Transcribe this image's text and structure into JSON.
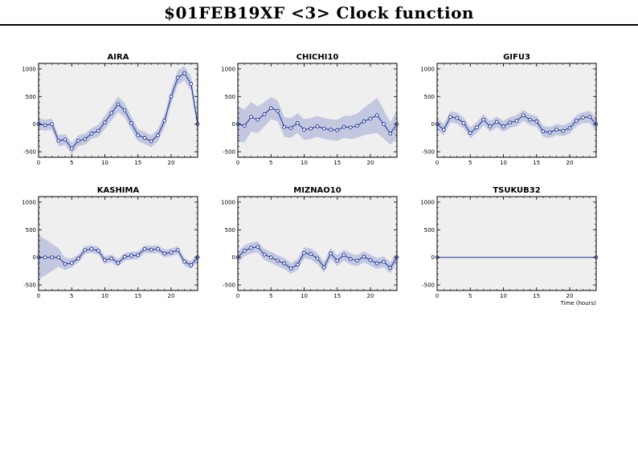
{
  "title": "$01FEB19XF <3>  Clock function",
  "chart_data": [
    {
      "type": "line",
      "title": "AIRA",
      "xlim": [
        0,
        24
      ],
      "ylim": [
        -600,
        1100
      ],
      "xticks": [
        "0",
        "5",
        "10",
        "15",
        "20"
      ],
      "yticks": [
        "-500",
        "0",
        "500",
        "1000"
      ],
      "xlabel": "",
      "x": [
        0,
        1,
        2,
        3,
        4,
        5,
        6,
        7,
        8,
        9,
        10,
        11,
        12,
        13,
        14,
        15,
        16,
        17,
        18,
        19,
        20,
        21,
        22,
        23,
        24
      ],
      "y": [
        0,
        -20,
        0,
        -300,
        -280,
        -440,
        -300,
        -270,
        -170,
        -120,
        30,
        200,
        360,
        250,
        20,
        -200,
        -250,
        -310,
        -200,
        60,
        500,
        840,
        920,
        730,
        0
      ],
      "band": [
        100,
        100,
        100,
        100,
        100,
        100,
        100,
        100,
        100,
        110,
        120,
        130,
        140,
        130,
        120,
        110,
        110,
        110,
        110,
        120,
        130,
        130,
        130,
        130,
        110
      ],
      "grid": false
    },
    {
      "type": "line",
      "title": "CHICHI10",
      "xlim": [
        0,
        24
      ],
      "ylim": [
        -600,
        1100
      ],
      "xticks": [
        "0",
        "5",
        "10",
        "15",
        "20"
      ],
      "yticks": [
        "-500",
        "0",
        "500",
        "1000"
      ],
      "xlabel": "",
      "x": [
        0,
        1,
        2,
        3,
        4,
        5,
        6,
        7,
        8,
        9,
        10,
        11,
        12,
        13,
        14,
        15,
        16,
        17,
        18,
        19,
        20,
        21,
        22,
        23,
        24
      ],
      "y": [
        0,
        -30,
        130,
        80,
        180,
        290,
        240,
        -50,
        -70,
        20,
        -100,
        -80,
        -40,
        -80,
        -100,
        -110,
        -50,
        -60,
        -30,
        50,
        100,
        160,
        0,
        -170,
        0
      ],
      "band": [
        320,
        300,
        270,
        240,
        220,
        200,
        190,
        180,
        180,
        180,
        190,
        190,
        190,
        190,
        190,
        190,
        200,
        210,
        220,
        250,
        280,
        320,
        260,
        200,
        250
      ],
      "grid": false
    },
    {
      "type": "line",
      "title": "GIFU3",
      "xlim": [
        0,
        24
      ],
      "ylim": [
        -600,
        1100
      ],
      "xticks": [
        "0",
        "5",
        "10",
        "15",
        "20"
      ],
      "yticks": [
        "-500",
        "0",
        "500",
        "1000"
      ],
      "xlabel": "",
      "x": [
        0,
        1,
        2,
        3,
        4,
        5,
        6,
        7,
        8,
        9,
        10,
        11,
        12,
        13,
        14,
        15,
        16,
        17,
        18,
        19,
        20,
        21,
        22,
        23,
        24
      ],
      "y": [
        0,
        -100,
        130,
        110,
        20,
        -160,
        -60,
        80,
        -40,
        40,
        -40,
        30,
        60,
        160,
        80,
        50,
        -130,
        -150,
        -100,
        -120,
        -70,
        60,
        120,
        130,
        0
      ],
      "band": [
        110,
        100,
        100,
        100,
        100,
        100,
        100,
        100,
        100,
        100,
        100,
        100,
        100,
        100,
        100,
        100,
        100,
        100,
        100,
        100,
        100,
        100,
        100,
        110,
        120
      ],
      "grid": false
    },
    {
      "type": "line",
      "title": "KASHIMA",
      "xlim": [
        0,
        24
      ],
      "ylim": [
        -600,
        1100
      ],
      "xticks": [
        "0",
        "5",
        "10",
        "15",
        "20"
      ],
      "yticks": [
        "-500",
        "0",
        "500",
        "1000"
      ],
      "xlabel": "",
      "x": [
        0,
        1,
        2,
        3,
        4,
        5,
        6,
        7,
        8,
        9,
        10,
        11,
        12,
        13,
        14,
        15,
        16,
        17,
        18,
        19,
        20,
        21,
        22,
        23,
        24
      ],
      "y": [
        0,
        0,
        0,
        0,
        -120,
        -100,
        -20,
        130,
        150,
        120,
        -50,
        -20,
        -100,
        10,
        30,
        40,
        150,
        140,
        150,
        70,
        90,
        130,
        -80,
        -140,
        0
      ],
      "band": [
        400,
        330,
        250,
        170,
        110,
        80,
        70,
        70,
        70,
        70,
        70,
        70,
        70,
        70,
        70,
        70,
        70,
        70,
        70,
        70,
        70,
        70,
        70,
        70,
        80
      ],
      "grid": false
    },
    {
      "type": "line",
      "title": "MIZNAO10",
      "xlim": [
        0,
        24
      ],
      "ylim": [
        -600,
        1100
      ],
      "xticks": [
        "0",
        "5",
        "10",
        "15",
        "20"
      ],
      "yticks": [
        "-500",
        "0",
        "500",
        "1000"
      ],
      "xlabel": "",
      "x": [
        0,
        1,
        2,
        3,
        4,
        5,
        6,
        7,
        8,
        9,
        10,
        11,
        12,
        13,
        14,
        15,
        16,
        17,
        18,
        19,
        20,
        21,
        22,
        23,
        24
      ],
      "y": [
        0,
        120,
        170,
        190,
        50,
        0,
        -60,
        -110,
        -200,
        -130,
        80,
        60,
        -20,
        -180,
        70,
        -60,
        40,
        -30,
        -60,
        10,
        -50,
        -110,
        -80,
        -190,
        0
      ],
      "band": [
        100,
        100,
        100,
        100,
        100,
        100,
        100,
        100,
        100,
        100,
        100,
        100,
        100,
        100,
        100,
        100,
        100,
        100,
        100,
        100,
        100,
        100,
        100,
        100,
        100
      ],
      "grid": false
    },
    {
      "type": "line",
      "title": "TSUKUB32",
      "xlim": [
        0,
        24
      ],
      "ylim": [
        -600,
        1100
      ],
      "xticks": [
        "0",
        "5",
        "10",
        "15",
        "20"
      ],
      "yticks": [
        "-500",
        "0",
        "500",
        "1000"
      ],
      "xlabel": "Time (hours)",
      "x": [
        0,
        24
      ],
      "y": [
        0,
        0
      ],
      "band": [
        0,
        0
      ],
      "grid": false
    }
  ],
  "colors": {
    "line": "#1a2f96",
    "band": "#c3c8e0",
    "plot_bg": "#efefef",
    "marker_fill": "#ffffff"
  }
}
